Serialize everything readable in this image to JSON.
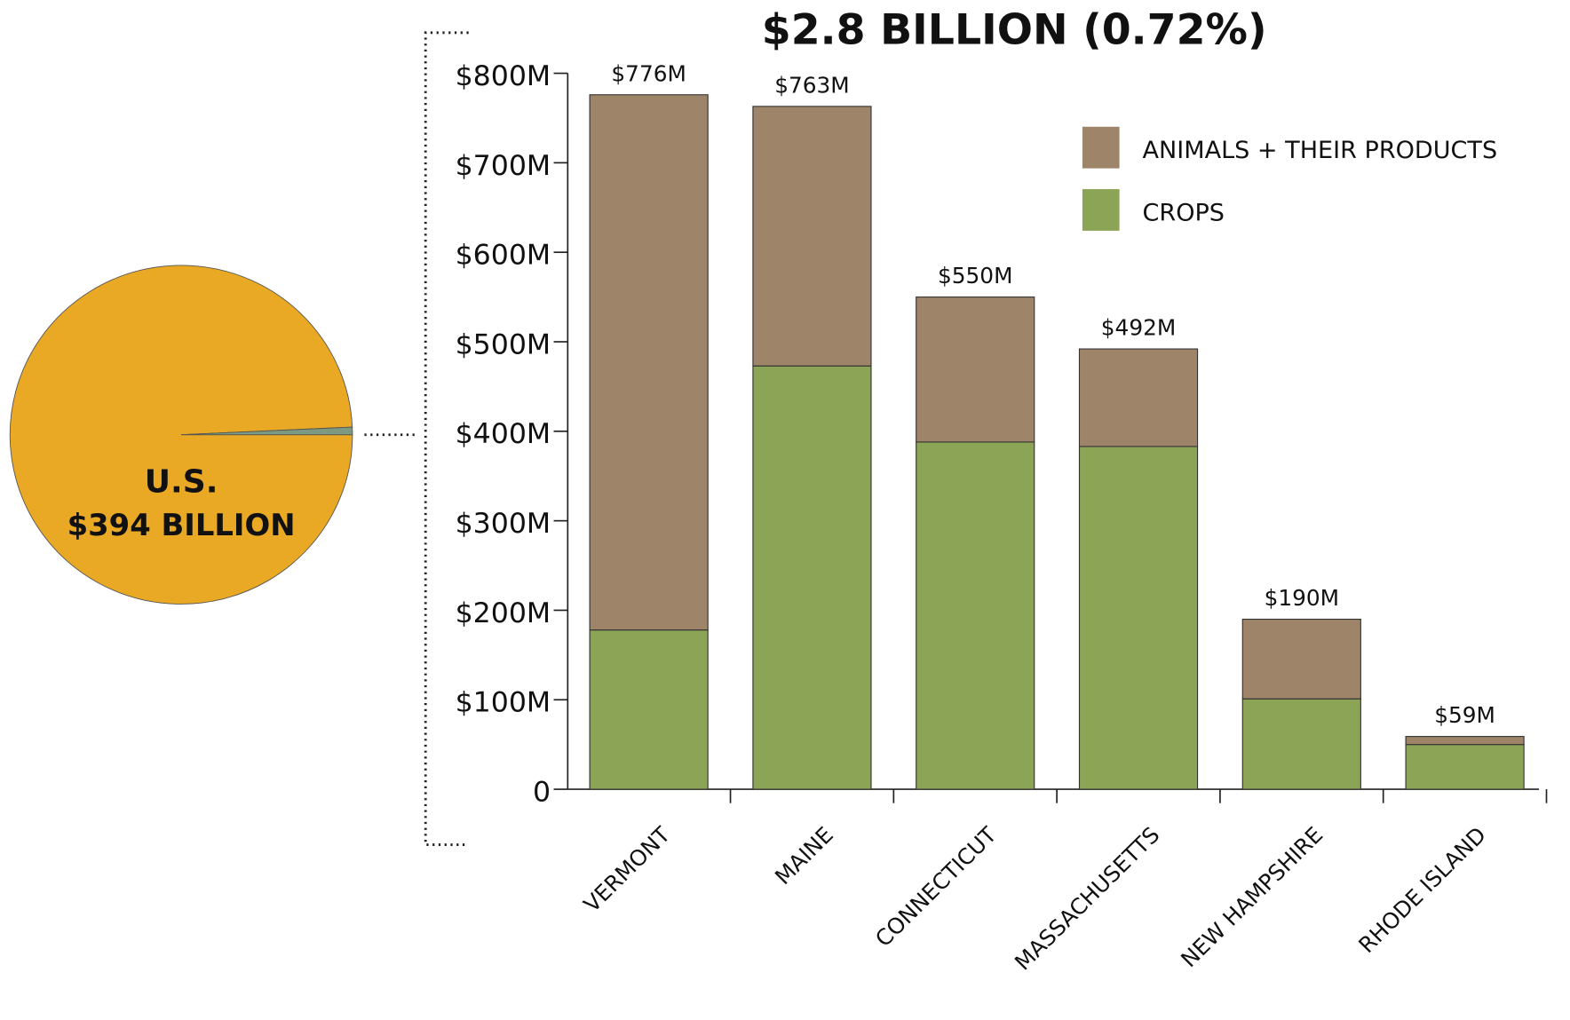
{
  "chart_data": [
    {
      "type": "pie",
      "label": "U.S.",
      "total_label": "$394 BILLION",
      "values": [
        99.28,
        0.72
      ],
      "colors": [
        "#eaa924",
        "#7d9a80"
      ]
    },
    {
      "type": "bar",
      "title": "$2.8 BILLION (0.72%)",
      "categories": [
        "VERMONT",
        "MAINE",
        "CONNECTICUT",
        "MASSACHUSETTS",
        "NEW HAMPSHIRE",
        "RHODE ISLAND"
      ],
      "series": [
        {
          "name": "CROPS",
          "color": "#8ca456",
          "values": [
            178,
            473,
            388,
            383,
            101,
            50
          ]
        },
        {
          "name": "ANIMALS + THEIR PRODUCTS",
          "color": "#9e856a",
          "values": [
            598,
            290,
            162,
            109,
            89,
            9
          ]
        }
      ],
      "totals": [
        776,
        763,
        550,
        492,
        190,
        59
      ],
      "total_labels": [
        "$776M",
        "$763M",
        "$550M",
        "$492M",
        "$190M",
        "$59M"
      ],
      "ylim": [
        0,
        800
      ],
      "yticks": [
        0,
        {
          "value": 100,
          "label": "$100M"
        },
        {
          "value": 200,
          "label": "$200M"
        },
        {
          "value": 300,
          "label": "$300M"
        },
        {
          "value": 400,
          "label": "$400M"
        },
        {
          "value": 500,
          "label": "$500M"
        },
        {
          "value": 600,
          "label": "$600M"
        },
        {
          "value": 700,
          "label": "$700M"
        },
        {
          "value": 800,
          "label": "$800M"
        }
      ],
      "grid": false
    }
  ]
}
